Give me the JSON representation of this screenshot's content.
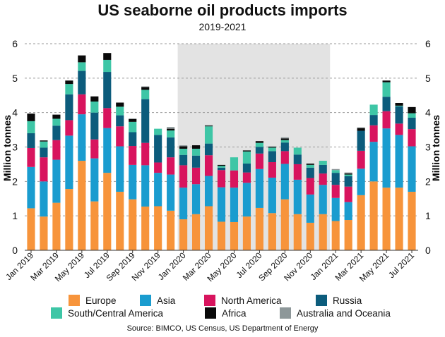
{
  "title": "US seaborne oil products imports",
  "subtitle": "2019-2021",
  "source": "Source: BIMCO, US Census, US Department of Energy",
  "chart_data": {
    "type": "bar",
    "stacked": true,
    "ylabel": "Million tonnes",
    "ylabel_right": "Million tonnes",
    "ylim": [
      0,
      6
    ],
    "yticks": [
      "0",
      "1",
      "2",
      "3",
      "4",
      "5",
      "6"
    ],
    "grid": true,
    "legend_position": "bottom",
    "shaded_period": {
      "from": "Jan 2020",
      "to": "Jan 2021",
      "color": "#e3e3e3"
    },
    "categories": [
      "Jan 2019",
      "Feb 2019",
      "Mar 2019",
      "Apr 2019",
      "May 2019",
      "Jun 2019",
      "Jul 2019",
      "Aug 2019",
      "Sep 2019",
      "Oct 2019",
      "Nov 2019",
      "Dec 2019",
      "Jan 2020",
      "Feb 2020",
      "Mar 2020",
      "Apr 2020",
      "May 2020",
      "Jun 2020",
      "Jul 2020",
      "Aug 2020",
      "Sep 2020",
      "Oct 2020",
      "Nov 2020",
      "Dec 2020",
      "Jan 2021",
      "Feb 2021",
      "Mar 2021",
      "Apr 2021",
      "May 2021",
      "Jun 2021",
      "Jul 2021"
    ],
    "tick_labels": [
      "Jan 2019",
      "Mar 2019",
      "May 2019",
      "Jul 2019",
      "Sep 2019",
      "Nov 2019",
      "Jan 2020",
      "Mar 2020",
      "May 2020",
      "Jul 2020",
      "Sep 2020",
      "Nov 2020",
      "Jan 2021",
      "Mar 2021",
      "May 2021",
      "Jul 2021"
    ],
    "series": [
      {
        "name": "Europe",
        "color": "#f7943b",
        "values": [
          1.22,
          0.98,
          1.38,
          1.78,
          2.6,
          1.42,
          2.25,
          1.7,
          1.48,
          1.27,
          1.28,
          1.15,
          0.9,
          1.05,
          1.28,
          0.83,
          0.82,
          0.98,
          1.23,
          1.08,
          1.48,
          1.05,
          0.8,
          1.05,
          0.85,
          0.88,
          1.6,
          2.0,
          1.82,
          1.82,
          1.7
        ]
      },
      {
        "name": "Asia",
        "color": "#1a9ccf",
        "values": [
          1.2,
          1.02,
          1.25,
          1.55,
          1.35,
          1.25,
          1.3,
          1.32,
          1.0,
          1.2,
          0.97,
          1.05,
          0.92,
          0.87,
          0.88,
          1.0,
          1.0,
          0.98,
          1.13,
          1.03,
          1.03,
          1.0,
          0.82,
          0.85,
          0.67,
          0.52,
          0.77,
          1.15,
          1.72,
          1.53,
          1.32
        ]
      },
      {
        "name": "North America",
        "color": "#d8145e",
        "values": [
          0.55,
          0.7,
          0.57,
          0.45,
          0.58,
          0.55,
          0.58,
          0.58,
          0.55,
          0.65,
          0.3,
          0.5,
          0.65,
          0.48,
          0.6,
          0.5,
          0.5,
          0.3,
          0.45,
          0.45,
          0.37,
          0.45,
          0.48,
          0.33,
          0.38,
          0.45,
          0.52,
          0.48,
          0.5,
          0.33,
          0.5
        ]
      },
      {
        "name": "Russia",
        "color": "#0c5c7c",
        "values": [
          0.43,
          0.28,
          0.42,
          0.75,
          0.68,
          0.78,
          1.05,
          0.32,
          0.4,
          1.27,
          0.8,
          0.58,
          0.3,
          0.35,
          0.34,
          0.07,
          0.0,
          0.26,
          0.19,
          0.32,
          0.25,
          0.28,
          0.3,
          0.25,
          0.35,
          0.3,
          0.58,
          0.3,
          0.42,
          0.5,
          0.33
        ]
      },
      {
        "name": "South/Central America",
        "color": "#3ec6a6",
        "values": [
          0.35,
          0.18,
          0.2,
          0.3,
          0.25,
          0.32,
          0.35,
          0.25,
          0.3,
          0.27,
          0.18,
          0.2,
          0.18,
          0.2,
          0.5,
          0.05,
          0.38,
          0.35,
          0.12,
          0.1,
          0.07,
          0.2,
          0.08,
          0.12,
          0.08,
          0.05,
          0.0,
          0.3,
          0.42,
          0.02,
          0.13
        ]
      },
      {
        "name": "Africa",
        "color": "#0a0a0a",
        "values": [
          0.22,
          0.03,
          0.12,
          0.1,
          0.2,
          0.15,
          0.2,
          0.12,
          0.08,
          0.08,
          0.0,
          0.05,
          0.07,
          0.1,
          0.02,
          0.03,
          0.0,
          0.03,
          0.05,
          0.02,
          0.05,
          0.0,
          0.03,
          0.0,
          0.0,
          0.03,
          0.08,
          0.0,
          0.05,
          0.08,
          0.18
        ]
      },
      {
        "name": "Australia and Oceania",
        "color": "#8d9799",
        "values": [
          0,
          0,
          0,
          0,
          0,
          0,
          0,
          0,
          0.02,
          0.02,
          0,
          0.05,
          0.03,
          0,
          0.02,
          0,
          0,
          0,
          0,
          0.02,
          0.03,
          0,
          0.02,
          0,
          0.03,
          0.03,
          0.02,
          0,
          0,
          0,
          0
        ]
      }
    ]
  },
  "legend": {
    "items": [
      "Europe",
      "Asia",
      "North America",
      "Russia",
      "South/Central America",
      "Africa",
      "Australia and Oceania"
    ]
  }
}
